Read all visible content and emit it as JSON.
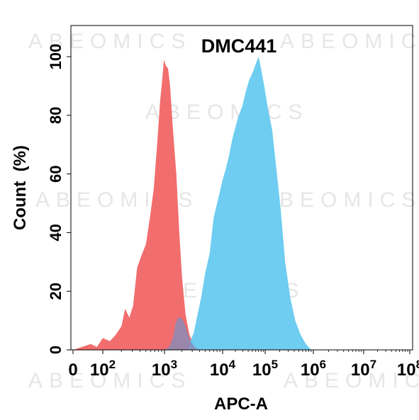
{
  "chart_data": {
    "type": "area",
    "title": "DMC441",
    "xlabel": "APC-A",
    "ylabel": "Count  (%)",
    "xscale": "biexponential (log)",
    "xlim": [
      0,
      100000000
    ],
    "ylim": [
      0,
      100
    ],
    "x_ticks": [
      {
        "base": "0",
        "exp": ""
      },
      {
        "base": "10",
        "exp": "2"
      },
      {
        "base": "10",
        "exp": "3"
      },
      {
        "base": "10",
        "exp": "4"
      },
      {
        "base": "10",
        "exp": "5"
      },
      {
        "base": "10",
        "exp": "6"
      },
      {
        "base": "10",
        "exp": "7"
      },
      {
        "base": "10",
        "exp": "8"
      }
    ],
    "y_ticks": [
      "0",
      "20",
      "40",
      "60",
      "80",
      "100"
    ],
    "watermark": "ABEOMICS",
    "grid": false,
    "legend": "none",
    "series": [
      {
        "color": "#f26d6d",
        "points": [
          [
            0,
            0
          ],
          [
            30,
            1
          ],
          [
            60,
            2
          ],
          [
            80,
            1
          ],
          [
            100,
            4
          ],
          [
            130,
            3
          ],
          [
            160,
            5
          ],
          [
            200,
            8
          ],
          [
            230,
            14
          ],
          [
            270,
            11
          ],
          [
            310,
            15
          ],
          [
            360,
            28
          ],
          [
            420,
            32
          ],
          [
            500,
            36
          ],
          [
            580,
            45
          ],
          [
            670,
            55
          ],
          [
            760,
            70
          ],
          [
            850,
            85
          ],
          [
            920,
            92
          ],
          [
            980,
            99
          ],
          [
            1050,
            97
          ],
          [
            1150,
            96
          ],
          [
            1250,
            90
          ],
          [
            1400,
            75
          ],
          [
            1600,
            60
          ],
          [
            1800,
            40
          ],
          [
            2000,
            25
          ],
          [
            2300,
            12
          ],
          [
            2700,
            5
          ],
          [
            3200,
            2
          ],
          [
            4000,
            0
          ]
        ]
      },
      {
        "color": "#6ecdf0",
        "points": [
          [
            2500,
            0
          ],
          [
            2800,
            3
          ],
          [
            3200,
            6
          ],
          [
            3700,
            12
          ],
          [
            4300,
            18
          ],
          [
            5000,
            26
          ],
          [
            6000,
            33
          ],
          [
            7000,
            45
          ],
          [
            8500,
            52
          ],
          [
            10000,
            58
          ],
          [
            12000,
            62
          ],
          [
            14000,
            66
          ],
          [
            17000,
            72
          ],
          [
            20000,
            76
          ],
          [
            24000,
            80
          ],
          [
            29000,
            83
          ],
          [
            35000,
            88
          ],
          [
            42000,
            92
          ],
          [
            52000,
            95
          ],
          [
            62000,
            98
          ],
          [
            70000,
            100
          ],
          [
            80000,
            96
          ],
          [
            95000,
            90
          ],
          [
            115000,
            82
          ],
          [
            140000,
            75
          ],
          [
            170000,
            62
          ],
          [
            210000,
            48
          ],
          [
            260000,
            30
          ],
          [
            330000,
            18
          ],
          [
            420000,
            10
          ],
          [
            550000,
            5
          ],
          [
            700000,
            2
          ],
          [
            900000,
            0
          ]
        ]
      },
      {
        "color": "#8a8bb5",
        "points": [
          [
            1000,
            0
          ],
          [
            1200,
            1
          ],
          [
            1400,
            4
          ],
          [
            1550,
            9
          ],
          [
            1700,
            11
          ],
          [
            1900,
            11
          ],
          [
            2100,
            10
          ],
          [
            2400,
            7
          ],
          [
            2800,
            3
          ],
          [
            3300,
            1
          ],
          [
            4000,
            0
          ]
        ]
      }
    ]
  }
}
